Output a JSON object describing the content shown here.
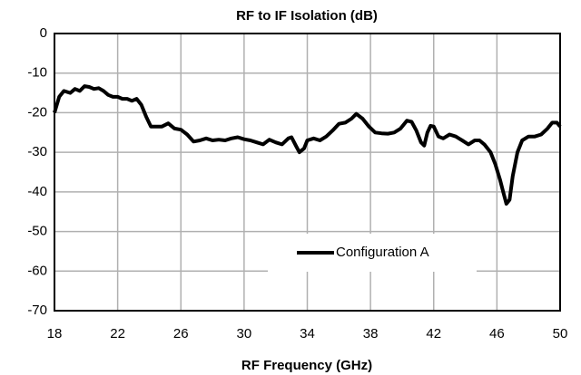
{
  "chart_data": {
    "type": "line",
    "title": "RF to IF Isolation (dB)",
    "x_label": "RF Frequency (GHz)",
    "xlim": [
      18,
      50
    ],
    "xticks": [
      18,
      22,
      26,
      30,
      34,
      38,
      42,
      46,
      50
    ],
    "ylim": [
      -70,
      0
    ],
    "yticks": [
      -70,
      -60,
      -50,
      -40,
      -30,
      -20,
      -10,
      0
    ],
    "grid": true,
    "legend": "lower center",
    "series": [
      {
        "name": "Configuration A",
        "color": "#000000",
        "x": [
          18.0,
          18.3,
          18.6,
          19.0,
          19.3,
          19.6,
          19.9,
          20.2,
          20.5,
          20.8,
          21.1,
          21.4,
          21.7,
          22.0,
          22.3,
          22.6,
          22.9,
          23.2,
          23.5,
          23.8,
          24.1,
          24.5,
          24.8,
          25.2,
          25.6,
          26.0,
          26.4,
          26.8,
          27.2,
          27.6,
          28.0,
          28.4,
          28.8,
          29.2,
          29.6,
          30.0,
          30.4,
          30.8,
          31.2,
          31.6,
          32.0,
          32.4,
          32.8,
          33.0,
          33.3,
          33.5,
          33.8,
          34.0,
          34.4,
          34.8,
          35.2,
          35.6,
          36.0,
          36.4,
          36.8,
          37.1,
          37.5,
          37.9,
          38.3,
          38.7,
          39.1,
          39.5,
          39.9,
          40.3,
          40.6,
          40.9,
          41.2,
          41.4,
          41.6,
          41.8,
          42.0,
          42.3,
          42.6,
          43.0,
          43.4,
          43.8,
          44.2,
          44.6,
          44.9,
          45.2,
          45.6,
          45.9,
          46.2,
          46.4,
          46.6,
          46.8,
          47.0,
          47.3,
          47.6,
          48.0,
          48.4,
          48.8,
          49.2,
          49.5,
          49.8,
          50.0
        ],
        "values": [
          -20,
          -16,
          -14.5,
          -15,
          -14,
          -14.5,
          -13.3,
          -13.5,
          -14,
          -13.8,
          -14.5,
          -15.5,
          -16,
          -16,
          -16.5,
          -16.5,
          -17,
          -16.5,
          -18,
          -21,
          -23.5,
          -23.5,
          -23.5,
          -22.7,
          -24,
          -24.3,
          -25.5,
          -27.3,
          -27,
          -26.5,
          -27,
          -26.8,
          -27,
          -26.5,
          -26.2,
          -26.7,
          -27,
          -27.5,
          -28,
          -26.8,
          -27.5,
          -28,
          -26.5,
          -26.2,
          -28.5,
          -30,
          -29,
          -27,
          -26.5,
          -27,
          -26,
          -24.5,
          -22.8,
          -22.5,
          -21.5,
          -20.3,
          -21.5,
          -23.5,
          -25,
          -25.2,
          -25.3,
          -25,
          -24,
          -22,
          -22.3,
          -24.5,
          -27.5,
          -28.3,
          -25,
          -23.3,
          -23.5,
          -26,
          -26.5,
          -25.5,
          -26,
          -27,
          -28,
          -27,
          -27,
          -28,
          -30,
          -33,
          -37,
          -40,
          -43,
          -42,
          -36,
          -30,
          -27,
          -26,
          -26,
          -25.5,
          -24,
          -22.5,
          -22.5,
          -23.5
        ]
      }
    ]
  }
}
